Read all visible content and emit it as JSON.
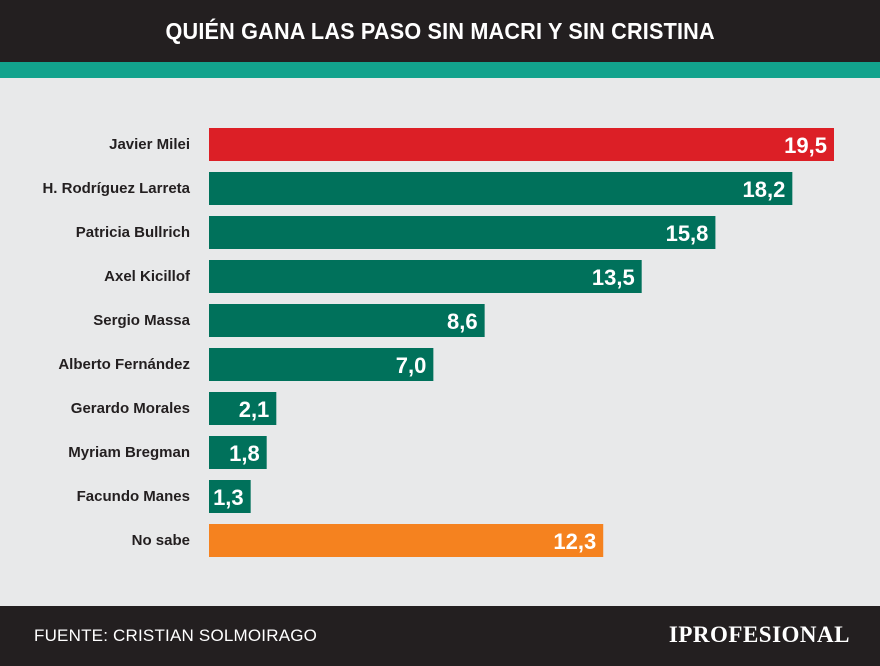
{
  "header": {
    "title": "QUIÉN GANA LAS PASO SIN MACRI Y SIN CRISTINA"
  },
  "colors": {
    "header_bg": "#231f20",
    "accent": "#12a38d",
    "bar_default": "#00715b",
    "bar_highlight": "#dc1f26",
    "bar_other": "#f5821f",
    "background": "#e8e9ea"
  },
  "chart_data": {
    "type": "bar",
    "orientation": "horizontal",
    "title": "QUIÉN GANA LAS PASO SIN MACRI Y SIN CRISTINA",
    "categories": [
      "Javier Milei",
      "H. Rodríguez Larreta",
      "Patricia Bullrich",
      "Axel Kicillof",
      "Sergio Massa",
      "Alberto Fernández",
      "Gerardo Morales",
      "Myriam Bregman",
      "Facundo Manes",
      "No sabe"
    ],
    "values": [
      19.5,
      18.2,
      15.8,
      13.5,
      8.6,
      7.0,
      2.1,
      1.8,
      1.3,
      12.3
    ],
    "value_labels": [
      "19,5",
      "18,2",
      "15,8",
      "13,5",
      "8,6",
      "7,0",
      "2,1",
      "1,8",
      "1,3",
      "12,3"
    ],
    "bar_colors": [
      "#dc1f26",
      "#00715b",
      "#00715b",
      "#00715b",
      "#00715b",
      "#00715b",
      "#00715b",
      "#00715b",
      "#00715b",
      "#f5821f"
    ],
    "xlim": [
      0,
      19.5
    ],
    "grid": false,
    "xlabel": "",
    "ylabel": ""
  },
  "footer": {
    "source": "FUENTE: CRISTIAN SOLMOIRAGO",
    "logo": "IPROFESIONAL"
  }
}
